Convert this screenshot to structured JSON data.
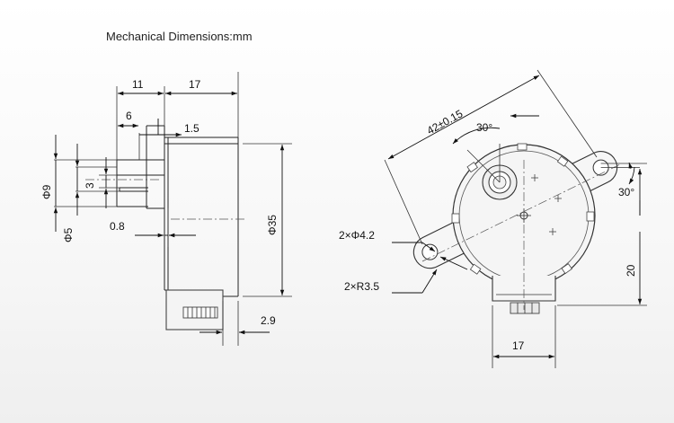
{
  "title": "Mechanical Dimensions:mm",
  "side_view": {
    "dims": {
      "d11": "11",
      "d17": "17",
      "d6": "6",
      "d1_5": "1.5",
      "dphi9": "Φ9",
      "d3": "3",
      "dphi5": "Φ5",
      "d0_8": "0.8",
      "dphi35": "Φ35",
      "d2_9": "2.9"
    }
  },
  "front_view": {
    "dims": {
      "d42": "42±0.15",
      "a30_top": "30°",
      "a30_right": "30°",
      "holes": "2×Φ4.2",
      "radius": "2×R3.5",
      "d20": "20",
      "d17": "17"
    }
  }
}
